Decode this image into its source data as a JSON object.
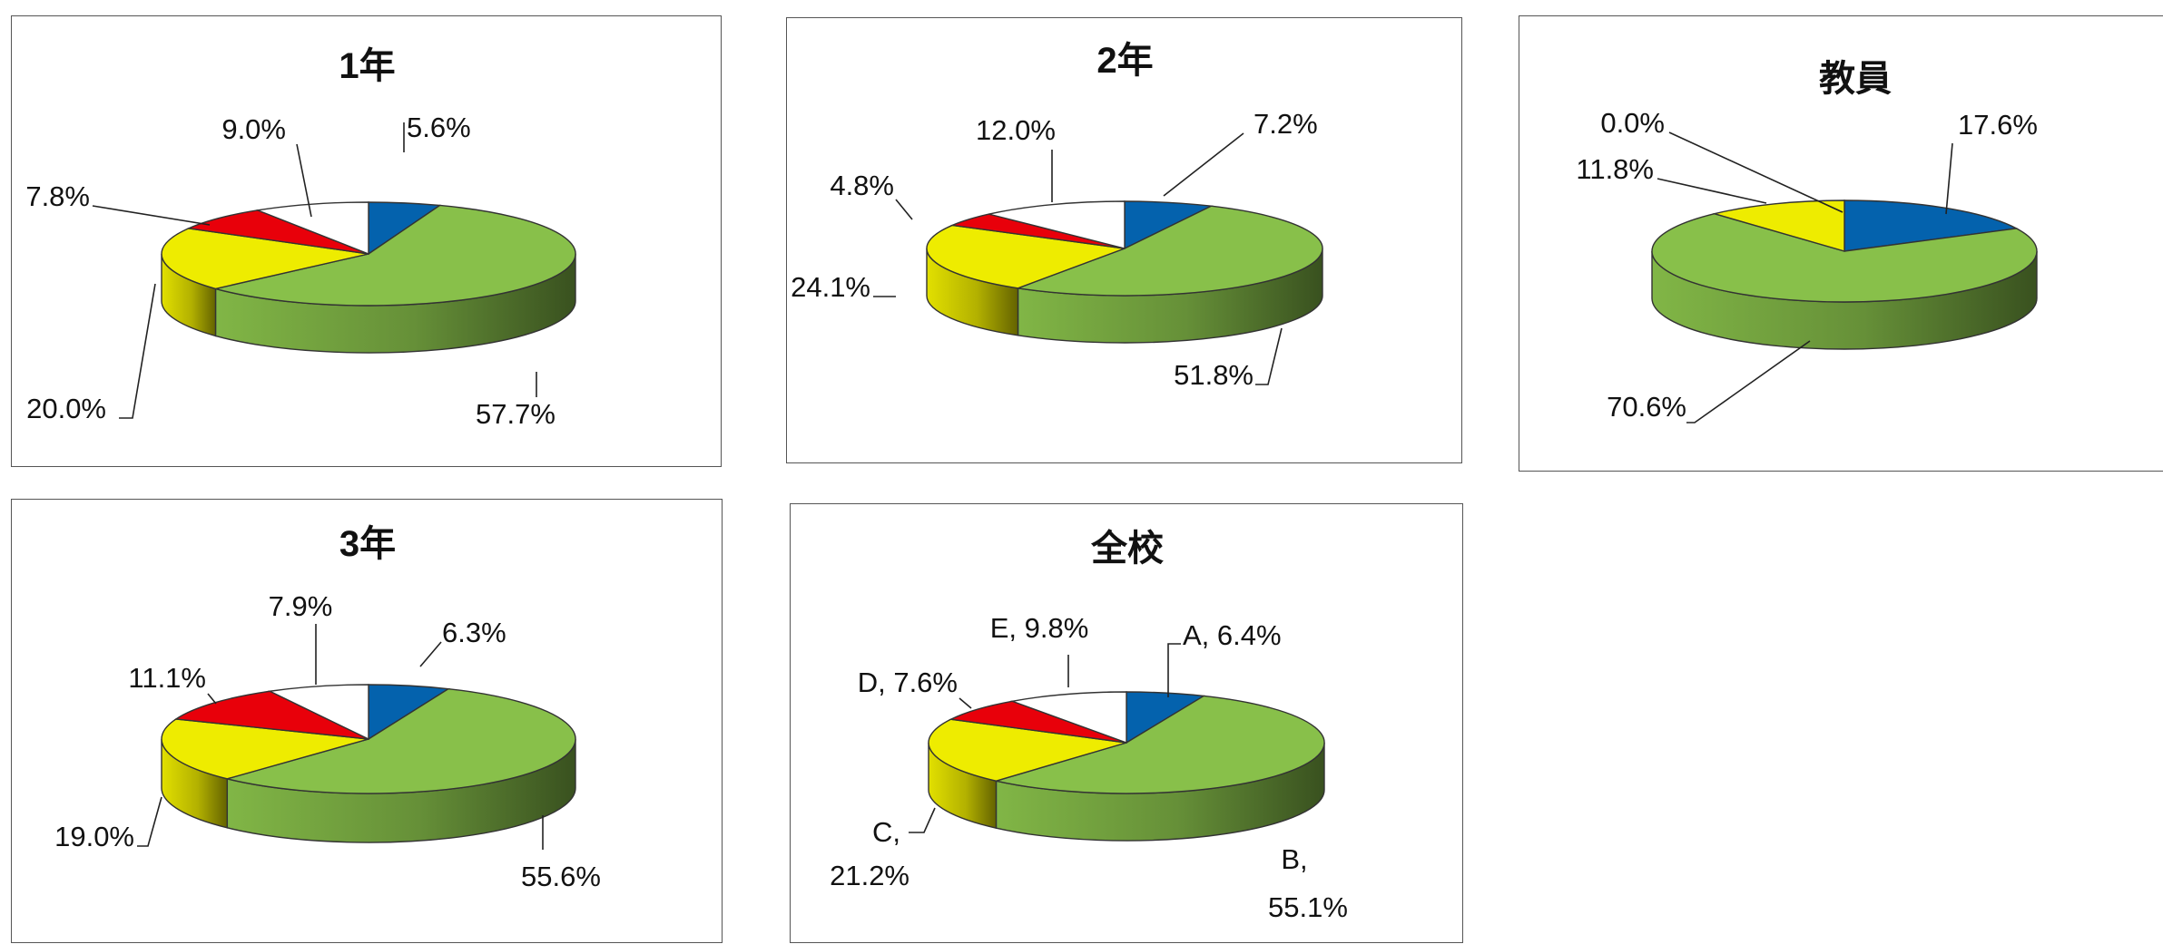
{
  "colors": {
    "A": "#0462ad",
    "B": "#88c04a",
    "C": "#eeec00",
    "D": "#e8000a",
    "E": "#ffffff"
  },
  "chart_data": [
    {
      "type": "pie",
      "title": "1年",
      "slices": [
        {
          "key": "A",
          "value": 5.6,
          "text": "5.6%"
        },
        {
          "key": "B",
          "value": 57.7,
          "text": "57.7%"
        },
        {
          "key": "C",
          "value": 20.0,
          "text": "20.0%"
        },
        {
          "key": "D",
          "value": 7.8,
          "text": "7.8%"
        },
        {
          "key": "E",
          "value": 9.0,
          "text": "9.0%"
        }
      ]
    },
    {
      "type": "pie",
      "title": "2年",
      "slices": [
        {
          "key": "A",
          "value": 7.2,
          "text": "7.2%"
        },
        {
          "key": "B",
          "value": 51.8,
          "text": "51.8%"
        },
        {
          "key": "C",
          "value": 24.1,
          "text": "24.1%"
        },
        {
          "key": "D",
          "value": 4.8,
          "text": "4.8%"
        },
        {
          "key": "E",
          "value": 12.0,
          "text": "12.0%"
        }
      ]
    },
    {
      "type": "pie",
      "title": "教員",
      "slices": [
        {
          "key": "A",
          "value": 17.6,
          "text": "17.6%"
        },
        {
          "key": "B",
          "value": 70.6,
          "text": "70.6%"
        },
        {
          "key": "C",
          "value": 11.8,
          "text": "11.8%"
        },
        {
          "key": "D",
          "value": 0.0,
          "text": ""
        },
        {
          "key": "E",
          "value": 0.0,
          "text": "0.0%"
        }
      ]
    },
    {
      "type": "pie",
      "title": "3年",
      "slices": [
        {
          "key": "A",
          "value": 6.3,
          "text": "6.3%"
        },
        {
          "key": "B",
          "value": 55.6,
          "text": "55.6%"
        },
        {
          "key": "C",
          "value": 19.0,
          "text": "19.0%"
        },
        {
          "key": "D",
          "value": 11.1,
          "text": "11.1%"
        },
        {
          "key": "E",
          "value": 7.9,
          "text": "7.9%"
        }
      ]
    },
    {
      "type": "pie",
      "title": "全校",
      "slices": [
        {
          "key": "A",
          "value": 6.4,
          "text": "A, 6.4%"
        },
        {
          "key": "B",
          "value": 55.1,
          "text": "B,|55.1%"
        },
        {
          "key": "C",
          "value": 21.2,
          "text": "C,|21.2%"
        },
        {
          "key": "D",
          "value": 7.6,
          "text": "D, 7.6%"
        },
        {
          "key": "E",
          "value": 9.8,
          "text": "E, 9.8%"
        }
      ]
    }
  ]
}
